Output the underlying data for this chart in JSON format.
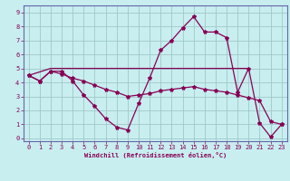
{
  "xlabel": "Windchill (Refroidissement éolien,°C)",
  "bg_color": "#c8eef0",
  "grid_color": "#a0c8c8",
  "line_color": "#880055",
  "spine_color": "#6666aa",
  "xlim": [
    -0.5,
    23.5
  ],
  "ylim": [
    -0.2,
    9.5
  ],
  "xticks": [
    0,
    1,
    2,
    3,
    4,
    5,
    6,
    7,
    8,
    9,
    10,
    11,
    12,
    13,
    14,
    15,
    16,
    17,
    18,
    19,
    20,
    21,
    22,
    23
  ],
  "yticks": [
    0,
    1,
    2,
    3,
    4,
    5,
    6,
    7,
    8,
    9
  ],
  "series1_x": [
    0,
    1,
    2,
    3,
    4,
    5,
    6,
    7,
    8,
    9,
    10,
    11,
    12,
    13,
    14,
    15,
    16,
    17,
    18,
    19,
    20,
    21,
    22,
    23
  ],
  "series1_y": [
    4.5,
    4.1,
    4.8,
    4.8,
    4.1,
    3.1,
    2.3,
    1.4,
    0.8,
    0.6,
    2.5,
    4.3,
    6.3,
    7.0,
    7.9,
    8.7,
    7.6,
    7.6,
    7.2,
    3.3,
    5.0,
    1.1,
    0.1,
    1.0
  ],
  "series2_x": [
    0,
    1,
    2,
    3,
    4,
    5,
    6,
    7,
    8,
    9,
    10,
    11,
    12,
    13,
    14,
    15,
    16,
    17,
    18,
    19,
    20,
    21,
    22,
    23
  ],
  "series2_y": [
    4.5,
    4.1,
    4.8,
    4.6,
    4.3,
    4.1,
    3.8,
    3.5,
    3.3,
    3.0,
    3.1,
    3.2,
    3.4,
    3.5,
    3.6,
    3.7,
    3.5,
    3.4,
    3.3,
    3.1,
    2.9,
    2.7,
    1.2,
    1.0
  ],
  "series3_x": [
    0,
    2,
    20
  ],
  "series3_y": [
    4.5,
    5.0,
    5.0
  ],
  "series4_x": [
    0,
    1,
    2,
    3,
    4,
    5,
    6,
    7,
    8,
    9,
    10,
    11,
    12,
    13,
    14,
    15,
    16,
    17,
    18,
    19,
    20,
    21,
    22,
    23
  ],
  "series4_y": [
    4.5,
    4.1,
    4.8,
    4.8,
    4.1,
    3.1,
    2.3,
    1.4,
    0.8,
    0.6,
    2.5,
    4.3,
    6.3,
    7.0,
    7.9,
    8.7,
    7.6,
    7.6,
    7.2,
    3.3,
    5.0,
    1.1,
    0.1,
    1.0
  ]
}
